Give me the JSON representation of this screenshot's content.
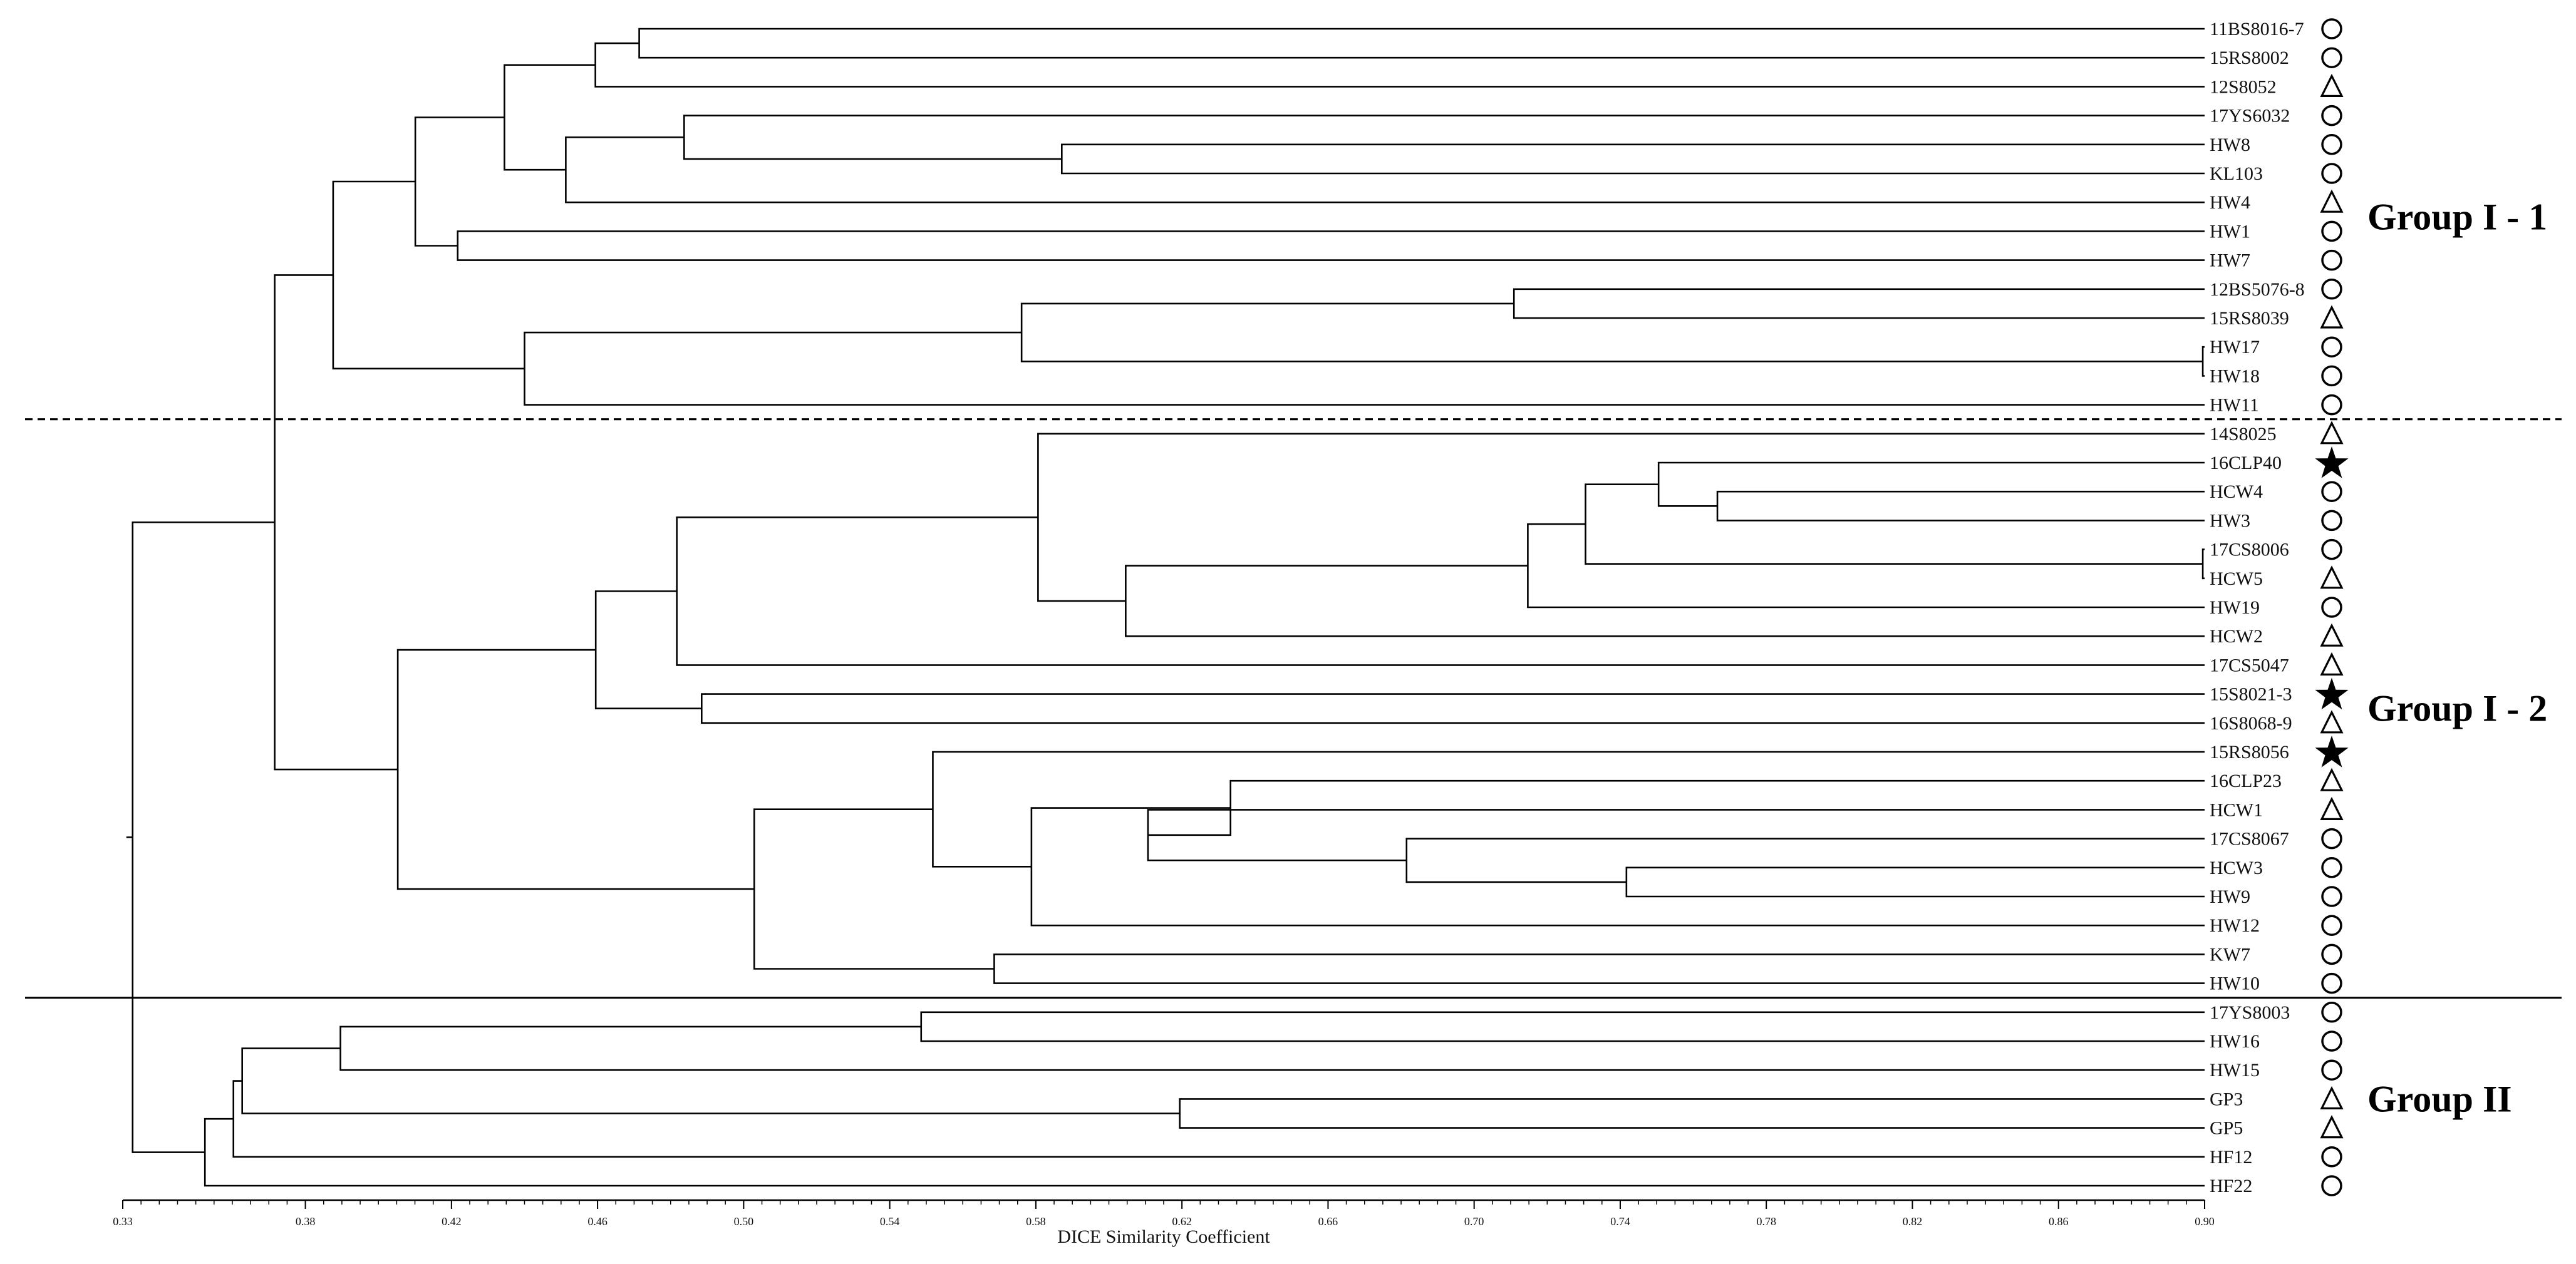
{
  "chart_data": {
    "type": "dendrogram",
    "title": "",
    "xlabel": "DICE Similarity Coefficient",
    "xlim": [
      0.33,
      0.9
    ],
    "x_ticks": [
      "0.33",
      "0.38",
      "0.42",
      "0.46",
      "0.50",
      "0.54",
      "0.58",
      "0.62",
      "0.66",
      "0.70",
      "0.74",
      "0.78",
      "0.82",
      "0.86",
      "0.90"
    ],
    "leaves": [
      {
        "name": "11BS8016-7",
        "marker": "circle"
      },
      {
        "name": "15RS8002",
        "marker": "circle"
      },
      {
        "name": "12S8052",
        "marker": "triangle"
      },
      {
        "name": "17YS6032",
        "marker": "circle"
      },
      {
        "name": "HW8",
        "marker": "circle"
      },
      {
        "name": "KL103",
        "marker": "circle"
      },
      {
        "name": "HW4",
        "marker": "triangle"
      },
      {
        "name": "HW1",
        "marker": "circle"
      },
      {
        "name": "HW7",
        "marker": "circle"
      },
      {
        "name": "12BS5076-8",
        "marker": "circle"
      },
      {
        "name": "15RS8039",
        "marker": "triangle"
      },
      {
        "name": "HW17",
        "marker": "circle"
      },
      {
        "name": "HW18",
        "marker": "circle"
      },
      {
        "name": "HW11",
        "marker": "circle"
      },
      {
        "name": "14S8025",
        "marker": "triangle"
      },
      {
        "name": "16CLP40",
        "marker": "star"
      },
      {
        "name": "HCW4",
        "marker": "circle"
      },
      {
        "name": "HW3",
        "marker": "circle"
      },
      {
        "name": "17CS8006",
        "marker": "circle"
      },
      {
        "name": "HCW5",
        "marker": "triangle"
      },
      {
        "name": "HW19",
        "marker": "circle"
      },
      {
        "name": "HCW2",
        "marker": "triangle"
      },
      {
        "name": "17CS5047",
        "marker": "triangle"
      },
      {
        "name": "15S8021-3",
        "marker": "star"
      },
      {
        "name": "16S8068-9",
        "marker": "triangle"
      },
      {
        "name": "15RS8056",
        "marker": "star"
      },
      {
        "name": "16CLP23",
        "marker": "triangle"
      },
      {
        "name": "HCW1",
        "marker": "triangle"
      },
      {
        "name": "17CS8067",
        "marker": "circle"
      },
      {
        "name": "HCW3",
        "marker": "circle"
      },
      {
        "name": "HW9",
        "marker": "circle"
      },
      {
        "name": "HW12",
        "marker": "circle"
      },
      {
        "name": "KW7",
        "marker": "circle"
      },
      {
        "name": "HW10",
        "marker": "circle"
      },
      {
        "name": "17YS8003",
        "marker": "circle"
      },
      {
        "name": "HW16",
        "marker": "circle"
      },
      {
        "name": "HW15",
        "marker": "circle"
      },
      {
        "name": "GP3",
        "marker": "triangle"
      },
      {
        "name": "GP5",
        "marker": "triangle"
      },
      {
        "name": "HF12",
        "marker": "circle"
      },
      {
        "name": "HF22",
        "marker": "circle"
      }
    ],
    "merges": [
      {
        "a": "L0",
        "b": "L1",
        "sim": 0.4714
      },
      {
        "a": "M0",
        "b": "L2",
        "sim": 0.4594
      },
      {
        "a": "L4",
        "b": "L5",
        "sim": 0.5871
      },
      {
        "a": "L3",
        "b": "M2",
        "sim": 0.4837
      },
      {
        "a": "M3",
        "b": "L6",
        "sim": 0.4513
      },
      {
        "a": "M1",
        "b": "M4",
        "sim": 0.4345
      },
      {
        "a": "L7",
        "b": "L8",
        "sim": 0.4217
      },
      {
        "a": "M5",
        "b": "M6",
        "sim": 0.4101
      },
      {
        "a": "L9",
        "b": "L10",
        "sim": 0.7109
      },
      {
        "a": "L11",
        "b": "L12",
        "sim": 0.8995
      },
      {
        "a": "M8",
        "b": "M9",
        "sim": 0.5761
      },
      {
        "a": "M10",
        "b": "L13",
        "sim": 0.44
      },
      {
        "a": "M7",
        "b": "M11",
        "sim": 0.3876
      },
      {
        "a": "L16",
        "b": "L17",
        "sim": 0.7666
      },
      {
        "a": "L15",
        "b": "M13",
        "sim": 0.7505
      },
      {
        "a": "L18",
        "b": "L19",
        "sim": 0.8995
      },
      {
        "a": "M14",
        "b": "M15",
        "sim": 0.7305
      },
      {
        "a": "M16",
        "b": "L20",
        "sim": 0.7147
      },
      {
        "a": "M17",
        "b": "L21",
        "sim": 0.6046
      },
      {
        "a": "L14",
        "b": "M18",
        "sim": 0.5806
      },
      {
        "a": "M19",
        "b": "L22",
        "sim": 0.4817
      },
      {
        "a": "L23",
        "b": "L24",
        "sim": 0.4885
      },
      {
        "a": "M20",
        "b": "M21",
        "sim": 0.4595
      },
      {
        "a": "L29",
        "b": "L30",
        "sim": 0.7417
      },
      {
        "a": "L28",
        "b": "M23",
        "sim": 0.6815
      },
      {
        "a": "L27",
        "b": "M24",
        "sim": 0.6107
      },
      {
        "a": "L26",
        "b": "M25",
        "sim": 0.6333
      },
      {
        "a": "M26",
        "b": "L31",
        "sim": 0.5788
      },
      {
        "a": "L25",
        "b": "M27",
        "sim": 0.5518
      },
      {
        "a": "L32",
        "b": "L33",
        "sim": 0.5686
      },
      {
        "a": "M28",
        "b": "M29",
        "sim": 0.5029
      },
      {
        "a": "M22",
        "b": "M30",
        "sim": 0.4053
      },
      {
        "a": "M12",
        "b": "M31",
        "sim": 0.3716
      },
      {
        "a": "L34",
        "b": "L35",
        "sim": 0.5486
      },
      {
        "a": "M33",
        "b": "L36",
        "sim": 0.3896
      },
      {
        "a": "L37",
        "b": "L38",
        "sim": 0.6194
      },
      {
        "a": "M34",
        "b": "M35",
        "sim": 0.3627
      },
      {
        "a": "M36",
        "b": "L39",
        "sim": 0.3603
      },
      {
        "a": "M37",
        "b": "L40",
        "sim": 0.3525
      },
      {
        "a": "M32",
        "b": "M38",
        "sim": 0.3327
      }
    ],
    "groups": [
      {
        "label": "Group I - 1",
        "first": 0,
        "last": 13
      },
      {
        "label": "Group I - 2",
        "first": 14,
        "last": 33
      },
      {
        "label": "Group II",
        "first": 34,
        "last": 40
      }
    ],
    "separators": [
      {
        "between": [
          13,
          14
        ],
        "style": "dashed"
      },
      {
        "between": [
          33,
          34
        ],
        "style": "solid"
      }
    ]
  }
}
